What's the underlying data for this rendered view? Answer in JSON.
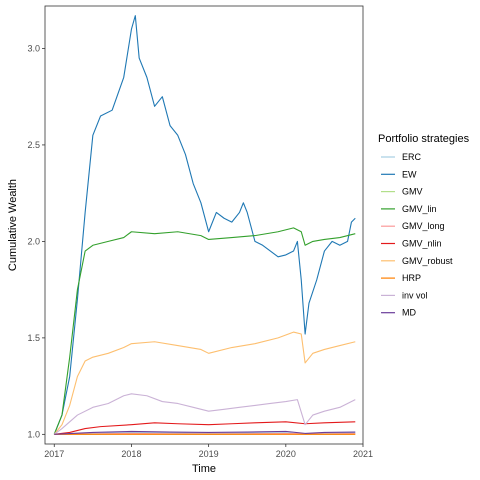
{
  "chart_data": {
    "type": "line",
    "title": "",
    "xlabel": "Time",
    "ylabel": "Cumulative Wealth",
    "xlim": [
      2016.88,
      2021.0
    ],
    "ylim": [
      0.95,
      3.22
    ],
    "x_ticks": [
      2017,
      2018,
      2019,
      2020,
      2021
    ],
    "y_ticks": [
      1.0,
      1.5,
      2.0,
      2.5,
      3.0
    ],
    "x_tick_labels": [
      "2017",
      "2018",
      "2019",
      "2020",
      "2021"
    ],
    "y_tick_labels": [
      "1.0",
      "1.5",
      "2.0",
      "2.5",
      "3.0"
    ],
    "grid": false,
    "legend": {
      "title": "Portfolio strategies",
      "position": "right"
    },
    "series": [
      {
        "name": "ERC",
        "color": "#a6cee3",
        "points": [
          [
            2017.0,
            1.0
          ],
          [
            2017.5,
            1.005
          ],
          [
            2018.0,
            1.01
          ],
          [
            2018.5,
            1.008
          ],
          [
            2019.0,
            1.005
          ],
          [
            2019.5,
            1.007
          ],
          [
            2020.0,
            1.008
          ],
          [
            2020.25,
            1.0
          ],
          [
            2020.5,
            1.005
          ],
          [
            2020.9,
            1.008
          ]
        ]
      },
      {
        "name": "EW",
        "color": "#1f78b4",
        "points": [
          [
            2017.0,
            1.0
          ],
          [
            2017.1,
            1.1
          ],
          [
            2017.2,
            1.3
          ],
          [
            2017.3,
            1.7
          ],
          [
            2017.4,
            2.15
          ],
          [
            2017.5,
            2.55
          ],
          [
            2017.6,
            2.65
          ],
          [
            2017.75,
            2.68
          ],
          [
            2017.9,
            2.85
          ],
          [
            2018.0,
            3.1
          ],
          [
            2018.05,
            3.17
          ],
          [
            2018.1,
            2.95
          ],
          [
            2018.2,
            2.85
          ],
          [
            2018.3,
            2.7
          ],
          [
            2018.4,
            2.75
          ],
          [
            2018.5,
            2.6
          ],
          [
            2018.6,
            2.55
          ],
          [
            2018.7,
            2.45
          ],
          [
            2018.8,
            2.3
          ],
          [
            2018.9,
            2.2
          ],
          [
            2019.0,
            2.05
          ],
          [
            2019.1,
            2.15
          ],
          [
            2019.2,
            2.12
          ],
          [
            2019.3,
            2.1
          ],
          [
            2019.4,
            2.15
          ],
          [
            2019.45,
            2.2
          ],
          [
            2019.5,
            2.15
          ],
          [
            2019.6,
            2.0
          ],
          [
            2019.7,
            1.98
          ],
          [
            2019.8,
            1.95
          ],
          [
            2019.9,
            1.92
          ],
          [
            2020.0,
            1.93
          ],
          [
            2020.1,
            1.95
          ],
          [
            2020.15,
            2.0
          ],
          [
            2020.2,
            1.8
          ],
          [
            2020.25,
            1.52
          ],
          [
            2020.3,
            1.68
          ],
          [
            2020.4,
            1.8
          ],
          [
            2020.5,
            1.95
          ],
          [
            2020.6,
            2.0
          ],
          [
            2020.7,
            1.98
          ],
          [
            2020.8,
            2.0
          ],
          [
            2020.85,
            2.1
          ],
          [
            2020.9,
            2.12
          ]
        ]
      },
      {
        "name": "GMV",
        "color": "#b2df8a",
        "points": [
          [
            2017.0,
            1.0
          ],
          [
            2017.5,
            1.0
          ],
          [
            2018.0,
            1.002
          ],
          [
            2018.5,
            1.001
          ],
          [
            2019.0,
            1.0
          ],
          [
            2019.5,
            1.001
          ],
          [
            2020.0,
            1.002
          ],
          [
            2020.5,
            1.0
          ],
          [
            2020.9,
            1.001
          ]
        ]
      },
      {
        "name": "GMV_lin",
        "color": "#33a02c",
        "points": [
          [
            2017.0,
            1.0
          ],
          [
            2017.1,
            1.1
          ],
          [
            2017.2,
            1.4
          ],
          [
            2017.3,
            1.75
          ],
          [
            2017.4,
            1.95
          ],
          [
            2017.5,
            1.98
          ],
          [
            2017.7,
            2.0
          ],
          [
            2017.9,
            2.02
          ],
          [
            2018.0,
            2.05
          ],
          [
            2018.3,
            2.04
          ],
          [
            2018.6,
            2.05
          ],
          [
            2018.9,
            2.03
          ],
          [
            2019.0,
            2.01
          ],
          [
            2019.3,
            2.02
          ],
          [
            2019.6,
            2.03
          ],
          [
            2019.9,
            2.05
          ],
          [
            2020.1,
            2.07
          ],
          [
            2020.2,
            2.05
          ],
          [
            2020.25,
            1.98
          ],
          [
            2020.35,
            2.0
          ],
          [
            2020.5,
            2.01
          ],
          [
            2020.7,
            2.02
          ],
          [
            2020.9,
            2.04
          ]
        ]
      },
      {
        "name": "GMV_long",
        "color": "#fb9a99",
        "points": [
          [
            2017.0,
            1.0
          ],
          [
            2017.5,
            1.002
          ],
          [
            2018.0,
            1.005
          ],
          [
            2018.5,
            1.003
          ],
          [
            2019.0,
            1.002
          ],
          [
            2019.5,
            1.003
          ],
          [
            2020.0,
            1.004
          ],
          [
            2020.5,
            1.002
          ],
          [
            2020.9,
            1.004
          ]
        ]
      },
      {
        "name": "GMV_nlin",
        "color": "#e31a1c",
        "points": [
          [
            2017.0,
            1.0
          ],
          [
            2017.2,
            1.01
          ],
          [
            2017.4,
            1.03
          ],
          [
            2017.6,
            1.04
          ],
          [
            2018.0,
            1.05
          ],
          [
            2018.3,
            1.06
          ],
          [
            2018.6,
            1.055
          ],
          [
            2019.0,
            1.05
          ],
          [
            2019.3,
            1.055
          ],
          [
            2019.6,
            1.06
          ],
          [
            2020.0,
            1.065
          ],
          [
            2020.25,
            1.055
          ],
          [
            2020.5,
            1.06
          ],
          [
            2020.9,
            1.065
          ]
        ]
      },
      {
        "name": "GMV_robust",
        "color": "#fdbf6f",
        "points": [
          [
            2017.0,
            1.0
          ],
          [
            2017.1,
            1.05
          ],
          [
            2017.2,
            1.15
          ],
          [
            2017.3,
            1.3
          ],
          [
            2017.4,
            1.38
          ],
          [
            2017.5,
            1.4
          ],
          [
            2017.7,
            1.42
          ],
          [
            2017.9,
            1.45
          ],
          [
            2018.0,
            1.47
          ],
          [
            2018.3,
            1.48
          ],
          [
            2018.6,
            1.46
          ],
          [
            2018.9,
            1.44
          ],
          [
            2019.0,
            1.42
          ],
          [
            2019.3,
            1.45
          ],
          [
            2019.6,
            1.47
          ],
          [
            2019.9,
            1.5
          ],
          [
            2020.1,
            1.53
          ],
          [
            2020.2,
            1.52
          ],
          [
            2020.25,
            1.37
          ],
          [
            2020.35,
            1.42
          ],
          [
            2020.5,
            1.44
          ],
          [
            2020.7,
            1.46
          ],
          [
            2020.9,
            1.48
          ]
        ]
      },
      {
        "name": "HRP",
        "color": "#ff7f00",
        "points": [
          [
            2017.0,
            1.0
          ],
          [
            2017.5,
            1.0
          ],
          [
            2018.0,
            1.0
          ],
          [
            2018.5,
            1.0
          ],
          [
            2019.0,
            1.0
          ],
          [
            2019.5,
            1.0
          ],
          [
            2020.0,
            1.0
          ],
          [
            2020.5,
            1.0
          ],
          [
            2020.9,
            1.0
          ]
        ]
      },
      {
        "name": "inv vol",
        "color": "#cab2d6",
        "points": [
          [
            2017.0,
            1.0
          ],
          [
            2017.1,
            1.03
          ],
          [
            2017.3,
            1.1
          ],
          [
            2017.5,
            1.14
          ],
          [
            2017.7,
            1.16
          ],
          [
            2017.9,
            1.2
          ],
          [
            2018.0,
            1.21
          ],
          [
            2018.2,
            1.2
          ],
          [
            2018.4,
            1.17
          ],
          [
            2018.6,
            1.16
          ],
          [
            2018.8,
            1.14
          ],
          [
            2019.0,
            1.12
          ],
          [
            2019.2,
            1.13
          ],
          [
            2019.4,
            1.14
          ],
          [
            2019.6,
            1.15
          ],
          [
            2019.8,
            1.16
          ],
          [
            2020.0,
            1.17
          ],
          [
            2020.15,
            1.18
          ],
          [
            2020.25,
            1.05
          ],
          [
            2020.35,
            1.1
          ],
          [
            2020.5,
            1.12
          ],
          [
            2020.7,
            1.14
          ],
          [
            2020.9,
            1.18
          ]
        ]
      },
      {
        "name": "MD",
        "color": "#6a3d9a",
        "points": [
          [
            2017.0,
            1.0
          ],
          [
            2017.5,
            1.01
          ],
          [
            2018.0,
            1.015
          ],
          [
            2018.5,
            1.012
          ],
          [
            2019.0,
            1.01
          ],
          [
            2019.5,
            1.012
          ],
          [
            2020.0,
            1.015
          ],
          [
            2020.25,
            1.005
          ],
          [
            2020.5,
            1.01
          ],
          [
            2020.9,
            1.012
          ]
        ]
      }
    ]
  }
}
